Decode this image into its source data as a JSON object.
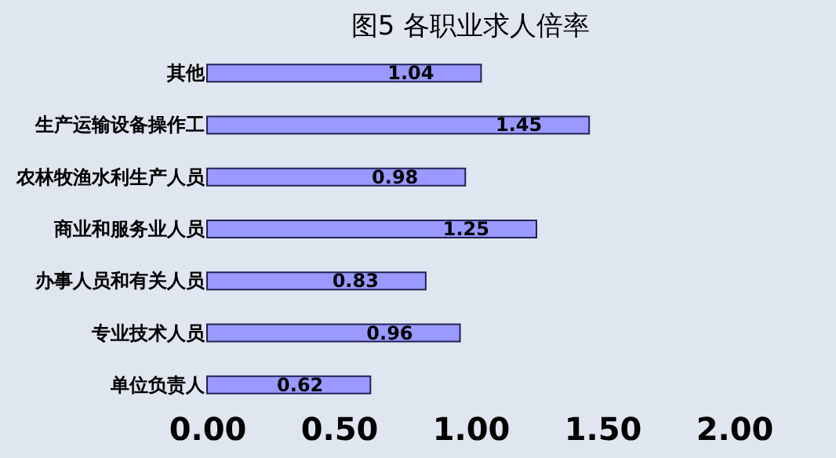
{
  "chart_data": {
    "type": "bar",
    "orientation": "horizontal",
    "title": "图5  各职业求人倍率",
    "categories": [
      "其他",
      "生产运输设备操作工",
      "农林牧渔水利生产人员",
      "商业和服务业人员",
      "办事人员和有关人员",
      "专业技术人员",
      "单位负责人"
    ],
    "values": [
      1.04,
      1.45,
      0.98,
      1.25,
      0.83,
      0.96,
      0.62
    ],
    "color": "#9999ff",
    "xlim": [
      0,
      2
    ],
    "xticks": [
      {
        "value": 0,
        "label": "0.00"
      },
      {
        "value": 0.5,
        "label": "0.50"
      },
      {
        "value": 1,
        "label": "1.00"
      },
      {
        "value": 1.5,
        "label": "1.50"
      },
      {
        "value": 2,
        "label": "2.00"
      }
    ],
    "data_labels": true,
    "grid": false
  }
}
